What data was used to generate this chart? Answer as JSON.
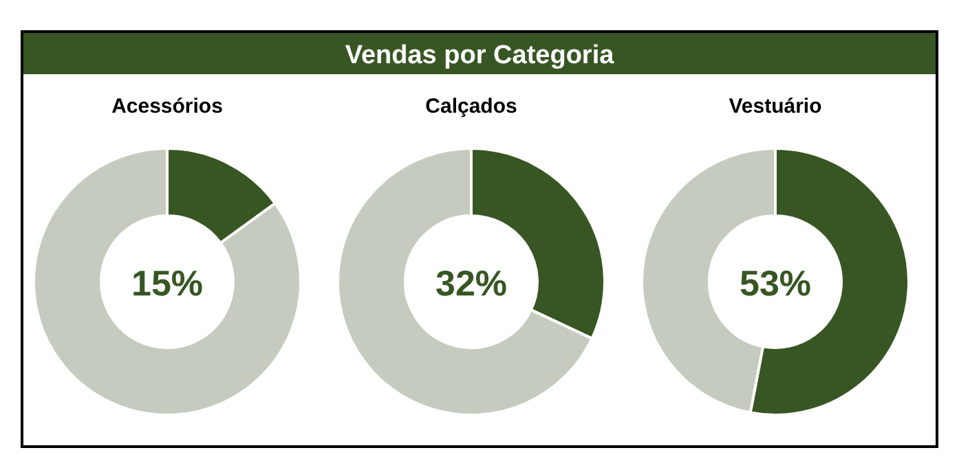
{
  "chart_data": [
    {
      "type": "other",
      "title": "Vendas por Categoria"
    },
    {
      "type": "donut",
      "title": "Acessórios",
      "categories": [
        null,
        null
      ],
      "values": [
        15,
        85
      ],
      "colors": [
        "#375623",
        "#c5cbbe"
      ],
      "annotations": [
        "15%"
      ]
    },
    {
      "type": "donut",
      "title": "Calçados",
      "categories": [
        null,
        null
      ],
      "values": [
        32,
        68
      ],
      "colors": [
        "#375623",
        "#c5cbbe"
      ],
      "annotations": [
        "32%"
      ]
    },
    {
      "type": "donut",
      "title": "Vestuário",
      "categories": [
        null,
        null
      ],
      "values": [
        53,
        47
      ],
      "colors": [
        "#375623",
        "#c5cbbe"
      ],
      "annotations": [
        "53%"
      ]
    }
  ]
}
